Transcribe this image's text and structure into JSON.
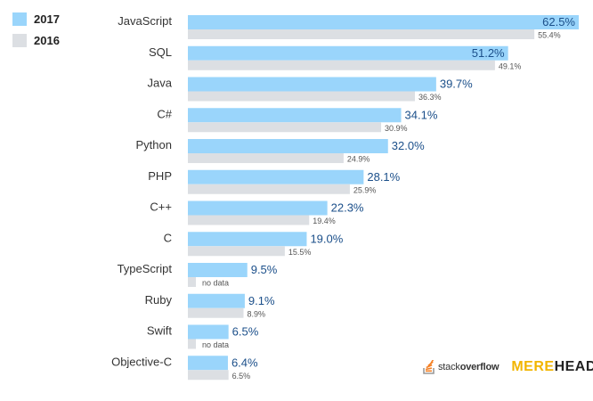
{
  "legend": [
    {
      "label": "2017",
      "color": "#9ad5fb"
    },
    {
      "label": "2016",
      "color": "#dcdfe3"
    }
  ],
  "logos": {
    "stackoverflow": {
      "part1": "stack",
      "part2": "overflow"
    },
    "merehead": {
      "part1": "MERE",
      "part2": "HEAD"
    }
  },
  "chart_data": {
    "type": "bar",
    "orientation": "horizontal",
    "title": "",
    "categories": [
      "JavaScript",
      "SQL",
      "Java",
      "C#",
      "Python",
      "PHP",
      "C++",
      "C",
      "TypeScript",
      "Ruby",
      "Swift",
      "Objective-C"
    ],
    "series": [
      {
        "name": "2017",
        "color": "#9ad5fb",
        "values": [
          62.5,
          51.2,
          39.7,
          34.1,
          32.0,
          28.1,
          22.3,
          19.0,
          9.5,
          9.1,
          6.5,
          6.4
        ],
        "labels": [
          "62.5%",
          "51.2%",
          "39.7%",
          "34.1%",
          "32.0%",
          "28.1%",
          "22.3%",
          "19.0%",
          "9.5%",
          "9.1%",
          "6.5%",
          "6.4%"
        ]
      },
      {
        "name": "2016",
        "color": "#dcdfe3",
        "values": [
          55.4,
          49.1,
          36.3,
          30.9,
          24.9,
          25.9,
          19.4,
          15.5,
          null,
          8.9,
          null,
          6.5
        ],
        "labels": [
          "55.4%",
          "49.1%",
          "36.3%",
          "30.9%",
          "24.9%",
          "25.9%",
          "19.4%",
          "15.5%",
          "no data",
          "8.9%",
          "no data",
          "6.5%"
        ]
      }
    ],
    "xlim": [
      0,
      62.5
    ],
    "legend_position": "top-left"
  }
}
